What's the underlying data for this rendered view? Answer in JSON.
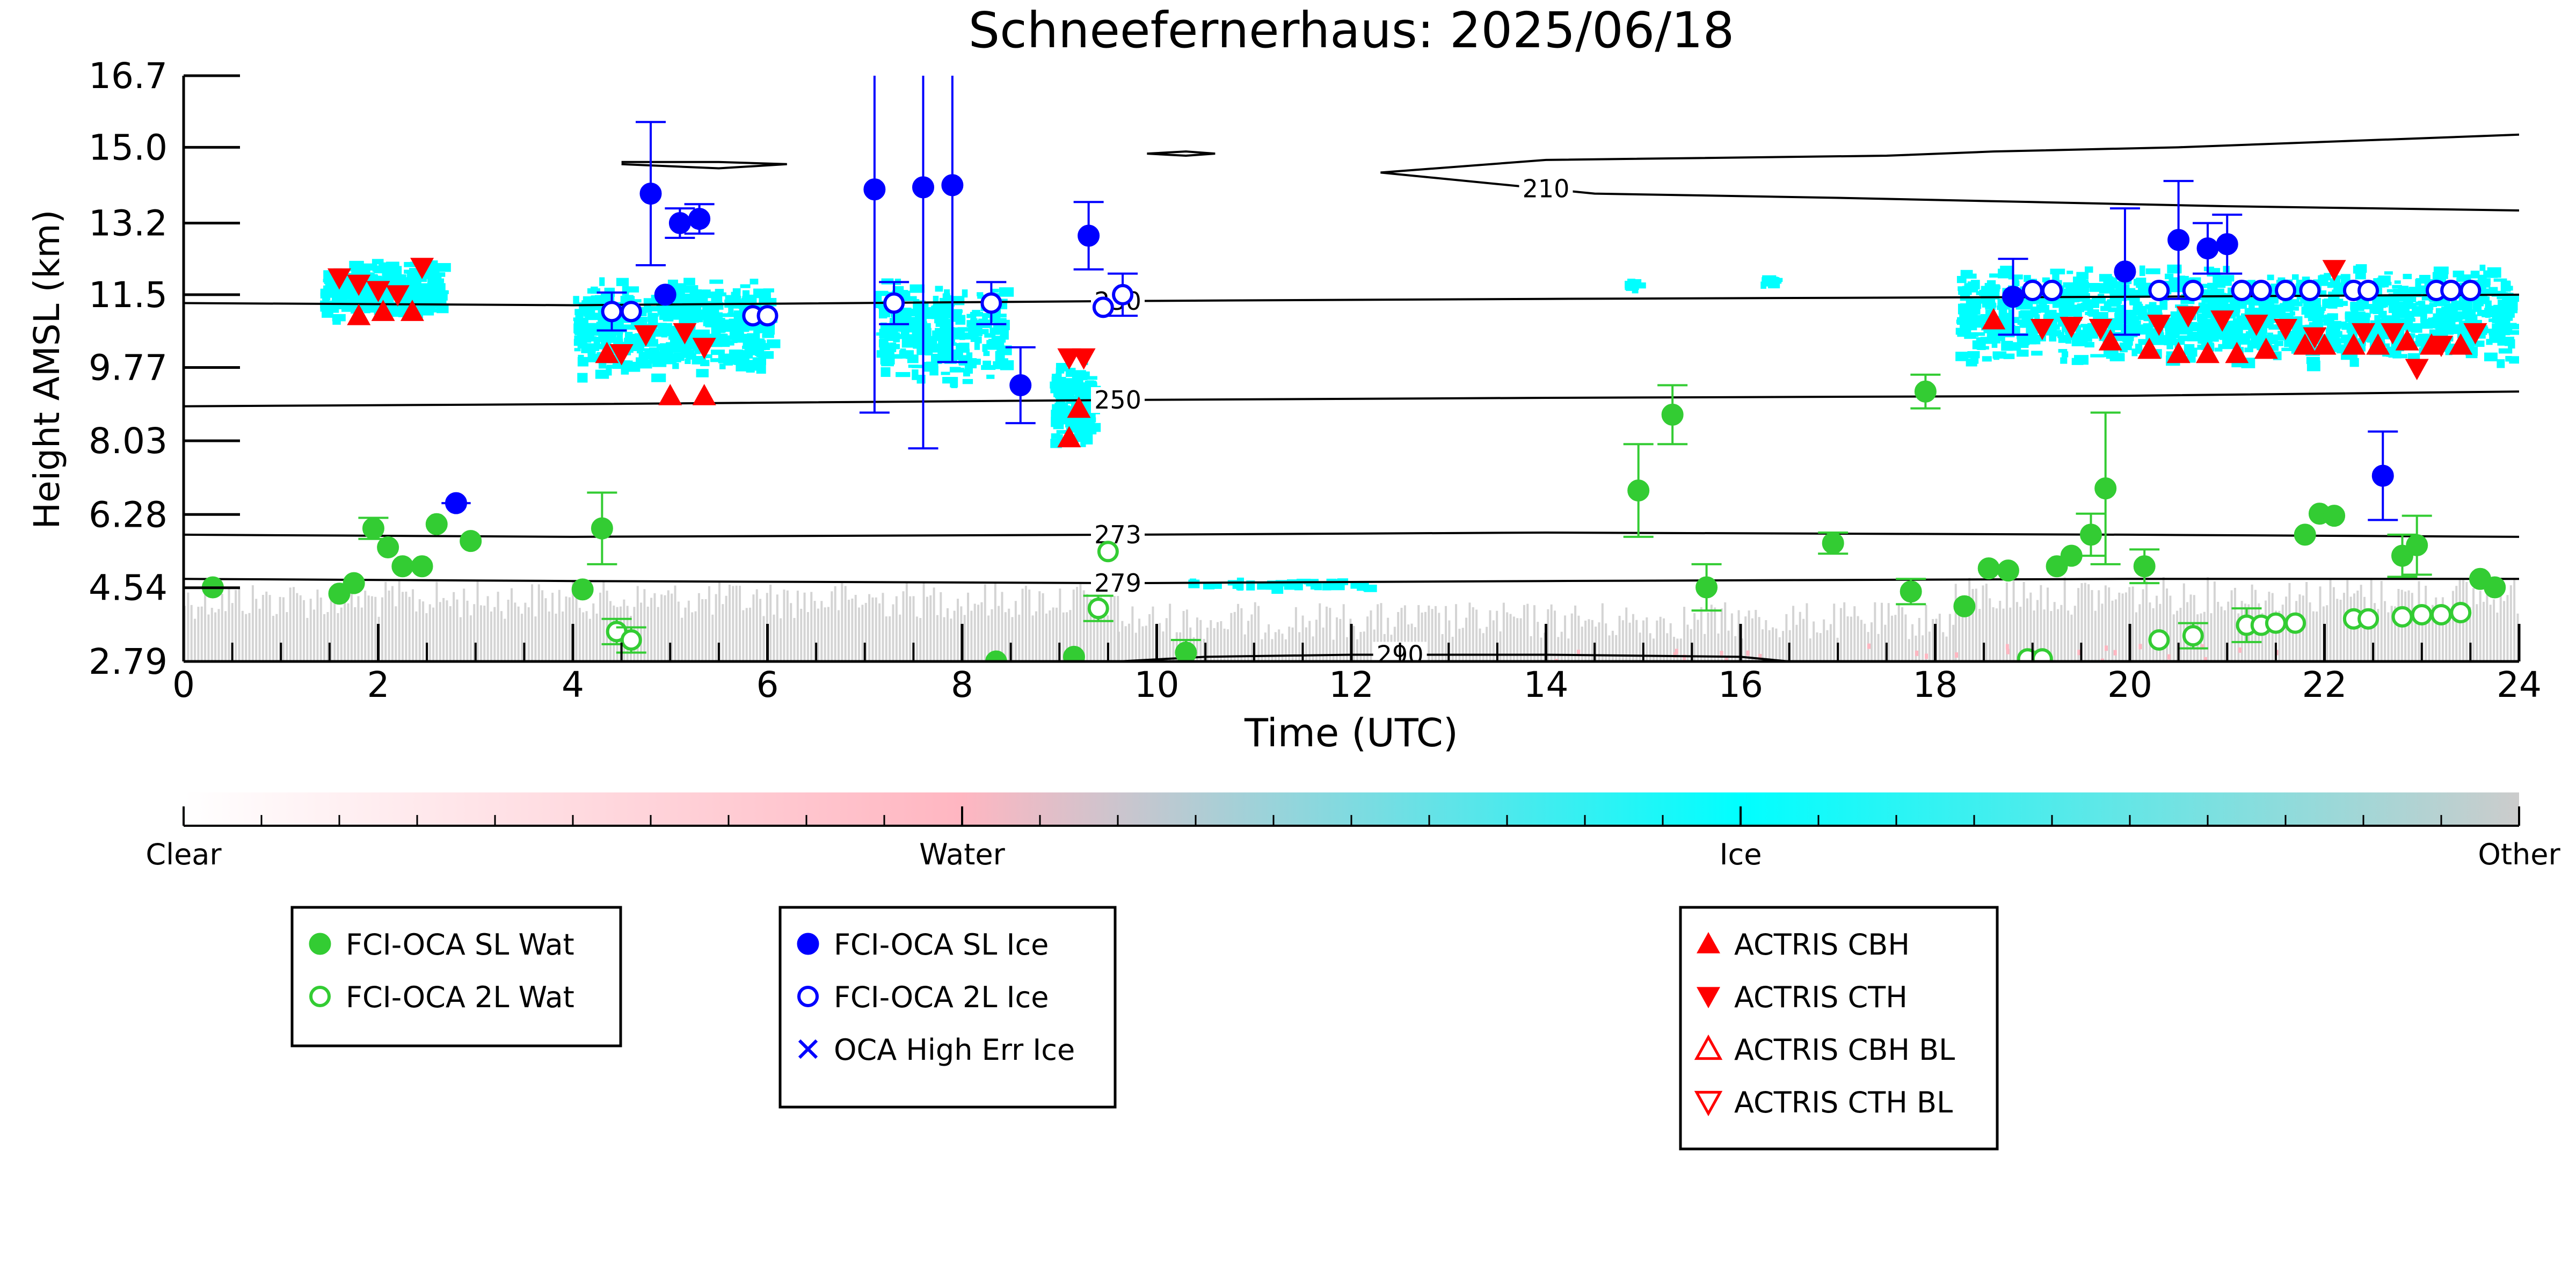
{
  "chart_data": {
    "type": "scatter",
    "title": "Schneefernerhaus: 2025/06/18",
    "xlabel": "Time (UTC)",
    "ylabel": "Height AMSL (km)",
    "xlim": [
      0,
      24
    ],
    "ylim": [
      2.79,
      16.7
    ],
    "xticks": [
      0,
      2,
      4,
      6,
      8,
      10,
      12,
      14,
      16,
      18,
      20,
      22,
      24
    ],
    "yticks": [
      "2.79",
      "4.54",
      "6.28",
      "8.03",
      "9.77",
      "11.5",
      "13.2",
      "15.0",
      "16.7"
    ],
    "grid": false,
    "colorbar": {
      "labels": [
        "Clear",
        "Water",
        "Ice",
        "Other"
      ],
      "colors": [
        "#ffffff",
        "#ffb6c1",
        "#00ffff",
        "#cccccc"
      ]
    },
    "contours": [
      {
        "label": "210",
        "label_x": 14.0,
        "points": [
          [
            12.3,
            14.4
          ],
          [
            14.5,
            13.9
          ],
          [
            17.0,
            13.8
          ],
          [
            19.0,
            13.7
          ],
          [
            21.0,
            13.6
          ],
          [
            24.0,
            13.5
          ]
        ]
      },
      {
        "label": "230",
        "label_x": 9.6,
        "points": [
          [
            0,
            11.3
          ],
          [
            4,
            11.25
          ],
          [
            9.7,
            11.35
          ],
          [
            14,
            11.4
          ],
          [
            20,
            11.45
          ],
          [
            24,
            11.5
          ]
        ]
      },
      {
        "label": "250",
        "label_x": 9.6,
        "points": [
          [
            0,
            8.85
          ],
          [
            4,
            8.9
          ],
          [
            9.7,
            9.0
          ],
          [
            14,
            9.05
          ],
          [
            20,
            9.1
          ],
          [
            24,
            9.2
          ]
        ]
      },
      {
        "label": "273",
        "label_x": 9.6,
        "points": [
          [
            0,
            5.8
          ],
          [
            4,
            5.75
          ],
          [
            9.7,
            5.8
          ],
          [
            14,
            5.85
          ],
          [
            20,
            5.8
          ],
          [
            24,
            5.75
          ]
        ]
      },
      {
        "label": "279",
        "label_x": 9.6,
        "points": [
          [
            0,
            4.75
          ],
          [
            4,
            4.7
          ],
          [
            9.7,
            4.65
          ],
          [
            14,
            4.7
          ],
          [
            20,
            4.75
          ],
          [
            24,
            4.75
          ]
        ]
      },
      {
        "label": "290",
        "label_x": 12.5,
        "points": [
          [
            9.6,
            2.79
          ],
          [
            10.5,
            2.9
          ],
          [
            12,
            2.95
          ],
          [
            14,
            2.95
          ],
          [
            16,
            2.9
          ],
          [
            16.5,
            2.79
          ]
        ]
      }
    ],
    "upper_contours": [
      [
        [
          4.5,
          14.6
        ],
        [
          5.5,
          14.5
        ],
        [
          6.2,
          14.6
        ],
        [
          5.5,
          14.65
        ],
        [
          4.5,
          14.65
        ]
      ],
      [
        [
          9.9,
          14.85
        ],
        [
          10.3,
          14.8
        ],
        [
          10.6,
          14.85
        ],
        [
          10.3,
          14.9
        ],
        [
          9.9,
          14.85
        ]
      ],
      [
        [
          12.3,
          14.4
        ],
        [
          14.0,
          14.7
        ],
        [
          17.5,
          14.8
        ],
        [
          18.6,
          14.9
        ],
        [
          20.5,
          15.0
        ],
        [
          24.0,
          15.3
        ]
      ]
    ],
    "series": [
      {
        "name": "FCI-OCA SL Wat",
        "color": "#33cc33",
        "marker": "filled-circle",
        "points": [
          {
            "x": 0.3,
            "y": 4.55
          },
          {
            "x": 1.6,
            "y": 4.4
          },
          {
            "x": 1.75,
            "y": 4.65
          },
          {
            "x": 1.95,
            "y": 5.95,
            "err": 0.25
          },
          {
            "x": 2.1,
            "y": 5.5
          },
          {
            "x": 2.25,
            "y": 5.05
          },
          {
            "x": 2.45,
            "y": 5.05
          },
          {
            "x": 2.6,
            "y": 6.05
          },
          {
            "x": 2.95,
            "y": 5.65
          },
          {
            "x": 4.1,
            "y": 4.5
          },
          {
            "x": 4.3,
            "y": 5.95,
            "err": 0.85
          },
          {
            "x": 8.35,
            "y": 2.79
          },
          {
            "x": 9.15,
            "y": 2.9
          },
          {
            "x": 10.3,
            "y": 3.0,
            "err": 0.3
          },
          {
            "x": 14.95,
            "y": 6.85,
            "err": 1.1
          },
          {
            "x": 15.3,
            "y": 8.65,
            "err": 0.7
          },
          {
            "x": 15.65,
            "y": 4.55,
            "err": 0.55
          },
          {
            "x": 16.95,
            "y": 5.6,
            "err": 0.25
          },
          {
            "x": 17.75,
            "y": 4.45,
            "err": 0.3
          },
          {
            "x": 17.9,
            "y": 9.2,
            "err": 0.4
          },
          {
            "x": 18.3,
            "y": 4.1
          },
          {
            "x": 18.55,
            "y": 5.0
          },
          {
            "x": 18.75,
            "y": 4.95
          },
          {
            "x": 19.25,
            "y": 5.05
          },
          {
            "x": 19.4,
            "y": 5.3
          },
          {
            "x": 19.6,
            "y": 5.8,
            "err": 0.5
          },
          {
            "x": 19.75,
            "y": 6.9,
            "err": 1.8
          },
          {
            "x": 20.15,
            "y": 5.05,
            "err": 0.4
          },
          {
            "x": 21.8,
            "y": 5.8
          },
          {
            "x": 21.95,
            "y": 6.3
          },
          {
            "x": 22.1,
            "y": 6.25
          },
          {
            "x": 22.8,
            "y": 5.3,
            "err": 0.5
          },
          {
            "x": 22.95,
            "y": 5.55,
            "err": 0.7
          },
          {
            "x": 23.6,
            "y": 4.75
          },
          {
            "x": 23.75,
            "y": 4.55
          }
        ]
      },
      {
        "name": "FCI-OCA 2L Wat",
        "color": "#33cc33",
        "marker": "open-circle",
        "points": [
          {
            "x": 4.45,
            "y": 3.5,
            "err": 0.3
          },
          {
            "x": 4.6,
            "y": 3.3,
            "err": 0.3
          },
          {
            "x": 9.4,
            "y": 4.05,
            "err": 0.3
          },
          {
            "x": 9.5,
            "y": 5.4
          },
          {
            "x": 18.95,
            "y": 2.85
          },
          {
            "x": 19.1,
            "y": 2.85
          },
          {
            "x": 20.3,
            "y": 3.3
          },
          {
            "x": 20.65,
            "y": 3.4,
            "err": 0.3
          },
          {
            "x": 21.2,
            "y": 3.65,
            "err": 0.4
          },
          {
            "x": 21.35,
            "y": 3.65
          },
          {
            "x": 21.5,
            "y": 3.7
          },
          {
            "x": 21.7,
            "y": 3.7
          },
          {
            "x": 22.3,
            "y": 3.8
          },
          {
            "x": 22.45,
            "y": 3.8
          },
          {
            "x": 22.8,
            "y": 3.85
          },
          {
            "x": 23.0,
            "y": 3.9
          },
          {
            "x": 23.2,
            "y": 3.9
          },
          {
            "x": 23.4,
            "y": 3.95
          }
        ]
      },
      {
        "name": "FCI-OCA SL Ice",
        "color": "#0000ff",
        "marker": "filled-circle",
        "points": [
          {
            "x": 2.8,
            "y": 6.55,
            "xerr": 0.15
          },
          {
            "x": 4.8,
            "y": 13.9,
            "err": 1.7
          },
          {
            "x": 4.95,
            "y": 11.5
          },
          {
            "x": 5.1,
            "y": 13.2,
            "err": 0.35
          },
          {
            "x": 5.3,
            "y": 13.3,
            "err": 0.35
          },
          {
            "x": 7.1,
            "y": 14.0,
            "err": 5.3
          },
          {
            "x": 7.6,
            "y": 14.05,
            "err": 6.2
          },
          {
            "x": 7.9,
            "y": 14.1,
            "err": 4.2
          },
          {
            "x": 8.6,
            "y": 9.35,
            "err": 0.9
          },
          {
            "x": 9.3,
            "y": 12.9,
            "err": 0.8
          },
          {
            "x": 18.8,
            "y": 11.45,
            "err": 0.9
          },
          {
            "x": 19.95,
            "y": 12.05,
            "err": 1.5
          },
          {
            "x": 20.5,
            "y": 12.8,
            "err": 1.4
          },
          {
            "x": 20.8,
            "y": 12.6,
            "err": 0.6
          },
          {
            "x": 21.0,
            "y": 12.7,
            "err": 0.7
          },
          {
            "x": 22.6,
            "y": 7.2,
            "err": 1.05
          }
        ]
      },
      {
        "name": "FCI-OCA 2L Ice",
        "color": "#0000ff",
        "marker": "open-circle",
        "points": [
          {
            "x": 4.4,
            "y": 11.1,
            "err": 0.45
          },
          {
            "x": 4.6,
            "y": 11.1
          },
          {
            "x": 5.85,
            "y": 11.0
          },
          {
            "x": 6.0,
            "y": 11.0
          },
          {
            "x": 7.3,
            "y": 11.3,
            "err": 0.5
          },
          {
            "x": 8.3,
            "y": 11.3,
            "err": 0.5
          },
          {
            "x": 9.45,
            "y": 11.2
          },
          {
            "x": 9.65,
            "y": 11.5,
            "err": 0.5
          },
          {
            "x": 19.0,
            "y": 11.6
          },
          {
            "x": 19.2,
            "y": 11.6
          },
          {
            "x": 20.3,
            "y": 11.6
          },
          {
            "x": 20.65,
            "y": 11.6
          },
          {
            "x": 21.15,
            "y": 11.6
          },
          {
            "x": 21.35,
            "y": 11.6
          },
          {
            "x": 21.6,
            "y": 11.6
          },
          {
            "x": 21.85,
            "y": 11.6
          },
          {
            "x": 22.3,
            "y": 11.6
          },
          {
            "x": 22.45,
            "y": 11.6
          },
          {
            "x": 23.15,
            "y": 11.6
          },
          {
            "x": 23.3,
            "y": 11.6
          },
          {
            "x": 23.5,
            "y": 11.6
          }
        ]
      },
      {
        "name": "OCA High Err Ice",
        "color": "#0000ff",
        "marker": "x",
        "points": []
      },
      {
        "name": "ACTRIS CBH",
        "color": "#ff0000",
        "marker": "triangle-up",
        "points": [
          {
            "x": 1.8,
            "y": 11.0
          },
          {
            "x": 2.05,
            "y": 11.1
          },
          {
            "x": 2.35,
            "y": 11.1
          },
          {
            "x": 4.35,
            "y": 10.1
          },
          {
            "x": 5.0,
            "y": 9.1
          },
          {
            "x": 5.35,
            "y": 9.1
          },
          {
            "x": 9.1,
            "y": 8.1
          },
          {
            "x": 9.2,
            "y": 8.8
          },
          {
            "x": 18.6,
            "y": 10.9
          },
          {
            "x": 19.8,
            "y": 10.4
          },
          {
            "x": 20.2,
            "y": 10.2
          },
          {
            "x": 20.5,
            "y": 10.1
          },
          {
            "x": 20.8,
            "y": 10.1
          },
          {
            "x": 21.1,
            "y": 10.1
          },
          {
            "x": 21.4,
            "y": 10.2
          },
          {
            "x": 21.8,
            "y": 10.3
          },
          {
            "x": 22.0,
            "y": 10.3
          },
          {
            "x": 22.3,
            "y": 10.3
          },
          {
            "x": 22.55,
            "y": 10.3
          },
          {
            "x": 22.85,
            "y": 10.4
          },
          {
            "x": 23.1,
            "y": 10.3
          },
          {
            "x": 23.4,
            "y": 10.3
          }
        ]
      },
      {
        "name": "ACTRIS CTH",
        "color": "#ff0000",
        "marker": "triangle-down",
        "points": [
          {
            "x": 1.6,
            "y": 11.9
          },
          {
            "x": 1.8,
            "y": 11.75
          },
          {
            "x": 2.0,
            "y": 11.6
          },
          {
            "x": 2.2,
            "y": 11.5
          },
          {
            "x": 2.45,
            "y": 12.15
          },
          {
            "x": 4.5,
            "y": 10.1
          },
          {
            "x": 4.75,
            "y": 10.55
          },
          {
            "x": 5.15,
            "y": 10.6
          },
          {
            "x": 5.35,
            "y": 10.25
          },
          {
            "x": 9.1,
            "y": 10.0
          },
          {
            "x": 9.25,
            "y": 10.0
          },
          {
            "x": 19.1,
            "y": 10.7
          },
          {
            "x": 19.4,
            "y": 10.75
          },
          {
            "x": 19.7,
            "y": 10.7
          },
          {
            "x": 20.3,
            "y": 10.8
          },
          {
            "x": 20.6,
            "y": 11.0
          },
          {
            "x": 20.95,
            "y": 10.9
          },
          {
            "x": 21.3,
            "y": 10.8
          },
          {
            "x": 21.6,
            "y": 10.7
          },
          {
            "x": 21.9,
            "y": 10.5
          },
          {
            "x": 22.1,
            "y": 12.1
          },
          {
            "x": 22.4,
            "y": 10.6
          },
          {
            "x": 22.7,
            "y": 10.6
          },
          {
            "x": 22.95,
            "y": 9.75
          },
          {
            "x": 23.2,
            "y": 10.3
          },
          {
            "x": 23.55,
            "y": 10.6
          }
        ]
      },
      {
        "name": "ACTRIS CBH BL",
        "color": "#ff0000",
        "marker": "open-triangle-up",
        "points": []
      },
      {
        "name": "ACTRIS CTH BL",
        "color": "#ff0000",
        "marker": "open-triangle-down",
        "points": []
      }
    ],
    "legends": [
      {
        "location": "left",
        "entries": [
          "FCI-OCA SL Wat",
          "FCI-OCA 2L Wat"
        ]
      },
      {
        "location": "center-left",
        "entries": [
          "FCI-OCA SL Ice",
          "FCI-OCA 2L Ice",
          "OCA High Err Ice"
        ]
      },
      {
        "location": "right",
        "entries": [
          "ACTRIS CBH",
          "ACTRIS CTH",
          "ACTRIS CBH BL",
          "ACTRIS CTH BL"
        ]
      }
    ]
  }
}
